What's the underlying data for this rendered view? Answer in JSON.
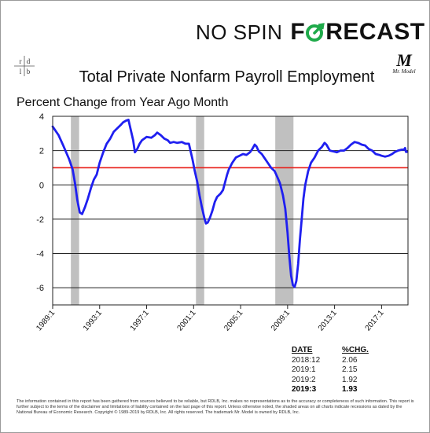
{
  "brand": {
    "part1": "NO SPIN",
    "part2_f": "F",
    "part2_rest": "RECAST",
    "accent": "#1faa4a"
  },
  "logo_left": {
    "letters": [
      "r",
      "d",
      "l",
      "b"
    ]
  },
  "logo_right": {
    "mark": "M",
    "text": "Mr. Model"
  },
  "header": {
    "title": "Total Private Nonfarm Payroll Employment",
    "subtitle": "Percent Change from Year Ago Month"
  },
  "chart_data": {
    "type": "line",
    "title": "Total Private Nonfarm Payroll Employment",
    "ylabel": "Percent Change from Year Ago Month",
    "ylim": [
      -7,
      4
    ],
    "xlim": [
      1989.0,
      2019.25
    ],
    "yticks": [
      4,
      2,
      0,
      -2,
      -4,
      -6
    ],
    "xticks": [
      {
        "value": 1989.0,
        "label": "1989:1"
      },
      {
        "value": 1993.0,
        "label": "1993:1"
      },
      {
        "value": 1997.0,
        "label": "1997:1"
      },
      {
        "value": 2001.0,
        "label": "2001:1"
      },
      {
        "value": 2005.0,
        "label": "2005:1"
      },
      {
        "value": 2009.0,
        "label": "2009:1"
      },
      {
        "value": 2013.0,
        "label": "2013:1"
      },
      {
        "value": 2017.0,
        "label": "2017:1"
      }
    ],
    "grid": "horizontal",
    "reference_line": {
      "y": 1.0,
      "color": "#e8211b"
    },
    "recessions": [
      [
        1990.55,
        1991.25
      ],
      [
        2001.2,
        2001.9
      ],
      [
        2007.95,
        2009.5
      ]
    ],
    "series": [
      {
        "color": "#1f1ff0",
        "points": [
          [
            1989.0,
            3.4
          ],
          [
            1989.5,
            2.9
          ],
          [
            1989.9,
            2.3
          ],
          [
            1990.4,
            1.5
          ],
          [
            1990.7,
            0.9
          ],
          [
            1990.9,
            0.1
          ],
          [
            1991.1,
            -0.9
          ],
          [
            1991.3,
            -1.6
          ],
          [
            1991.5,
            -1.7
          ],
          [
            1991.75,
            -1.3
          ],
          [
            1992.0,
            -0.8
          ],
          [
            1992.25,
            -0.2
          ],
          [
            1992.5,
            0.3
          ],
          [
            1992.75,
            0.6
          ],
          [
            1993.0,
            1.3
          ],
          [
            1993.3,
            1.9
          ],
          [
            1993.6,
            2.4
          ],
          [
            1993.9,
            2.7
          ],
          [
            1994.2,
            3.1
          ],
          [
            1994.5,
            3.3
          ],
          [
            1994.8,
            3.5
          ],
          [
            1995.0,
            3.65
          ],
          [
            1995.25,
            3.75
          ],
          [
            1995.45,
            3.8
          ],
          [
            1995.65,
            3.2
          ],
          [
            1995.85,
            2.6
          ],
          [
            1996.0,
            1.9
          ],
          [
            1996.2,
            2.1
          ],
          [
            1996.4,
            2.4
          ],
          [
            1996.6,
            2.6
          ],
          [
            1997.0,
            2.8
          ],
          [
            1997.4,
            2.75
          ],
          [
            1997.7,
            2.9
          ],
          [
            1997.9,
            3.05
          ],
          [
            1998.2,
            2.9
          ],
          [
            1998.5,
            2.7
          ],
          [
            1998.8,
            2.6
          ],
          [
            1999.0,
            2.45
          ],
          [
            1999.3,
            2.5
          ],
          [
            1999.6,
            2.45
          ],
          [
            2000.0,
            2.5
          ],
          [
            2000.3,
            2.4
          ],
          [
            2000.6,
            2.4
          ],
          [
            2000.9,
            1.5
          ],
          [
            2001.1,
            0.8
          ],
          [
            2001.3,
            0.2
          ],
          [
            2001.5,
            -0.6
          ],
          [
            2001.7,
            -1.3
          ],
          [
            2001.9,
            -1.9
          ],
          [
            2002.05,
            -2.25
          ],
          [
            2002.2,
            -2.2
          ],
          [
            2002.4,
            -1.9
          ],
          [
            2002.6,
            -1.5
          ],
          [
            2002.8,
            -1.0
          ],
          [
            2003.0,
            -0.7
          ],
          [
            2003.3,
            -0.5
          ],
          [
            2003.5,
            -0.3
          ],
          [
            2003.7,
            0.2
          ],
          [
            2003.85,
            0.6
          ],
          [
            2004.0,
            0.9
          ],
          [
            2004.3,
            1.3
          ],
          [
            2004.6,
            1.6
          ],
          [
            2004.9,
            1.7
          ],
          [
            2005.2,
            1.8
          ],
          [
            2005.5,
            1.75
          ],
          [
            2005.8,
            1.9
          ],
          [
            2006.0,
            2.1
          ],
          [
            2006.2,
            2.35
          ],
          [
            2006.35,
            2.25
          ],
          [
            2006.55,
            1.95
          ],
          [
            2006.8,
            1.8
          ],
          [
            2007.0,
            1.6
          ],
          [
            2007.3,
            1.3
          ],
          [
            2007.6,
            1.0
          ],
          [
            2007.9,
            0.8
          ],
          [
            2008.1,
            0.5
          ],
          [
            2008.35,
            0.1
          ],
          [
            2008.6,
            -0.6
          ],
          [
            2008.8,
            -1.4
          ],
          [
            2009.0,
            -2.8
          ],
          [
            2009.15,
            -4.2
          ],
          [
            2009.3,
            -5.3
          ],
          [
            2009.45,
            -5.85
          ],
          [
            2009.6,
            -5.95
          ],
          [
            2009.75,
            -5.6
          ],
          [
            2009.9,
            -4.6
          ],
          [
            2010.05,
            -3.2
          ],
          [
            2010.2,
            -2.0
          ],
          [
            2010.35,
            -0.8
          ],
          [
            2010.5,
            0.0
          ],
          [
            2010.75,
            0.8
          ],
          [
            2011.0,
            1.3
          ],
          [
            2011.3,
            1.6
          ],
          [
            2011.6,
            2.0
          ],
          [
            2011.9,
            2.2
          ],
          [
            2012.15,
            2.45
          ],
          [
            2012.3,
            2.35
          ],
          [
            2012.6,
            2.0
          ],
          [
            2012.9,
            1.95
          ],
          [
            2013.2,
            1.9
          ],
          [
            2013.5,
            2.0
          ],
          [
            2013.8,
            2.0
          ],
          [
            2014.1,
            2.15
          ],
          [
            2014.4,
            2.35
          ],
          [
            2014.7,
            2.5
          ],
          [
            2015.0,
            2.45
          ],
          [
            2015.3,
            2.35
          ],
          [
            2015.6,
            2.3
          ],
          [
            2015.9,
            2.1
          ],
          [
            2016.2,
            2.0
          ],
          [
            2016.5,
            1.8
          ],
          [
            2016.8,
            1.75
          ],
          [
            2017.0,
            1.7
          ],
          [
            2017.3,
            1.65
          ],
          [
            2017.6,
            1.7
          ],
          [
            2017.9,
            1.8
          ],
          [
            2018.1,
            1.9
          ],
          [
            2018.4,
            2.0
          ],
          [
            2018.7,
            2.05
          ],
          [
            2018.92,
            2.06
          ],
          [
            2019.0,
            2.15
          ],
          [
            2019.08,
            1.92
          ],
          [
            2019.17,
            1.93
          ]
        ]
      }
    ]
  },
  "table": {
    "headers": [
      "DATE",
      "%CHG."
    ],
    "rows": [
      {
        "date": "2018:12",
        "chg": "2.06"
      },
      {
        "date": "2019:1",
        "chg": "2.15"
      },
      {
        "date": "2019:2",
        "chg": "1.92"
      },
      {
        "date": "2019:3",
        "chg": "1.93"
      }
    ]
  },
  "disclaimer": "The information contained in this report has been gathered from sources believed to be reliable, but RDLB, Inc. makes no representations as to the accuracy or completeness of such information. This report is further subject to the terms of the disclaimer and limitations of liability contained on the last page of this report. Unless otherwise noted, the shaded areas on all charts indicate recessions as dated by the National Bureau of Economic Research. Copyright © 1989-2019 by RDLB, Inc. All rights reserved. The trademark Mr. Model is owned by RDLB, Inc."
}
